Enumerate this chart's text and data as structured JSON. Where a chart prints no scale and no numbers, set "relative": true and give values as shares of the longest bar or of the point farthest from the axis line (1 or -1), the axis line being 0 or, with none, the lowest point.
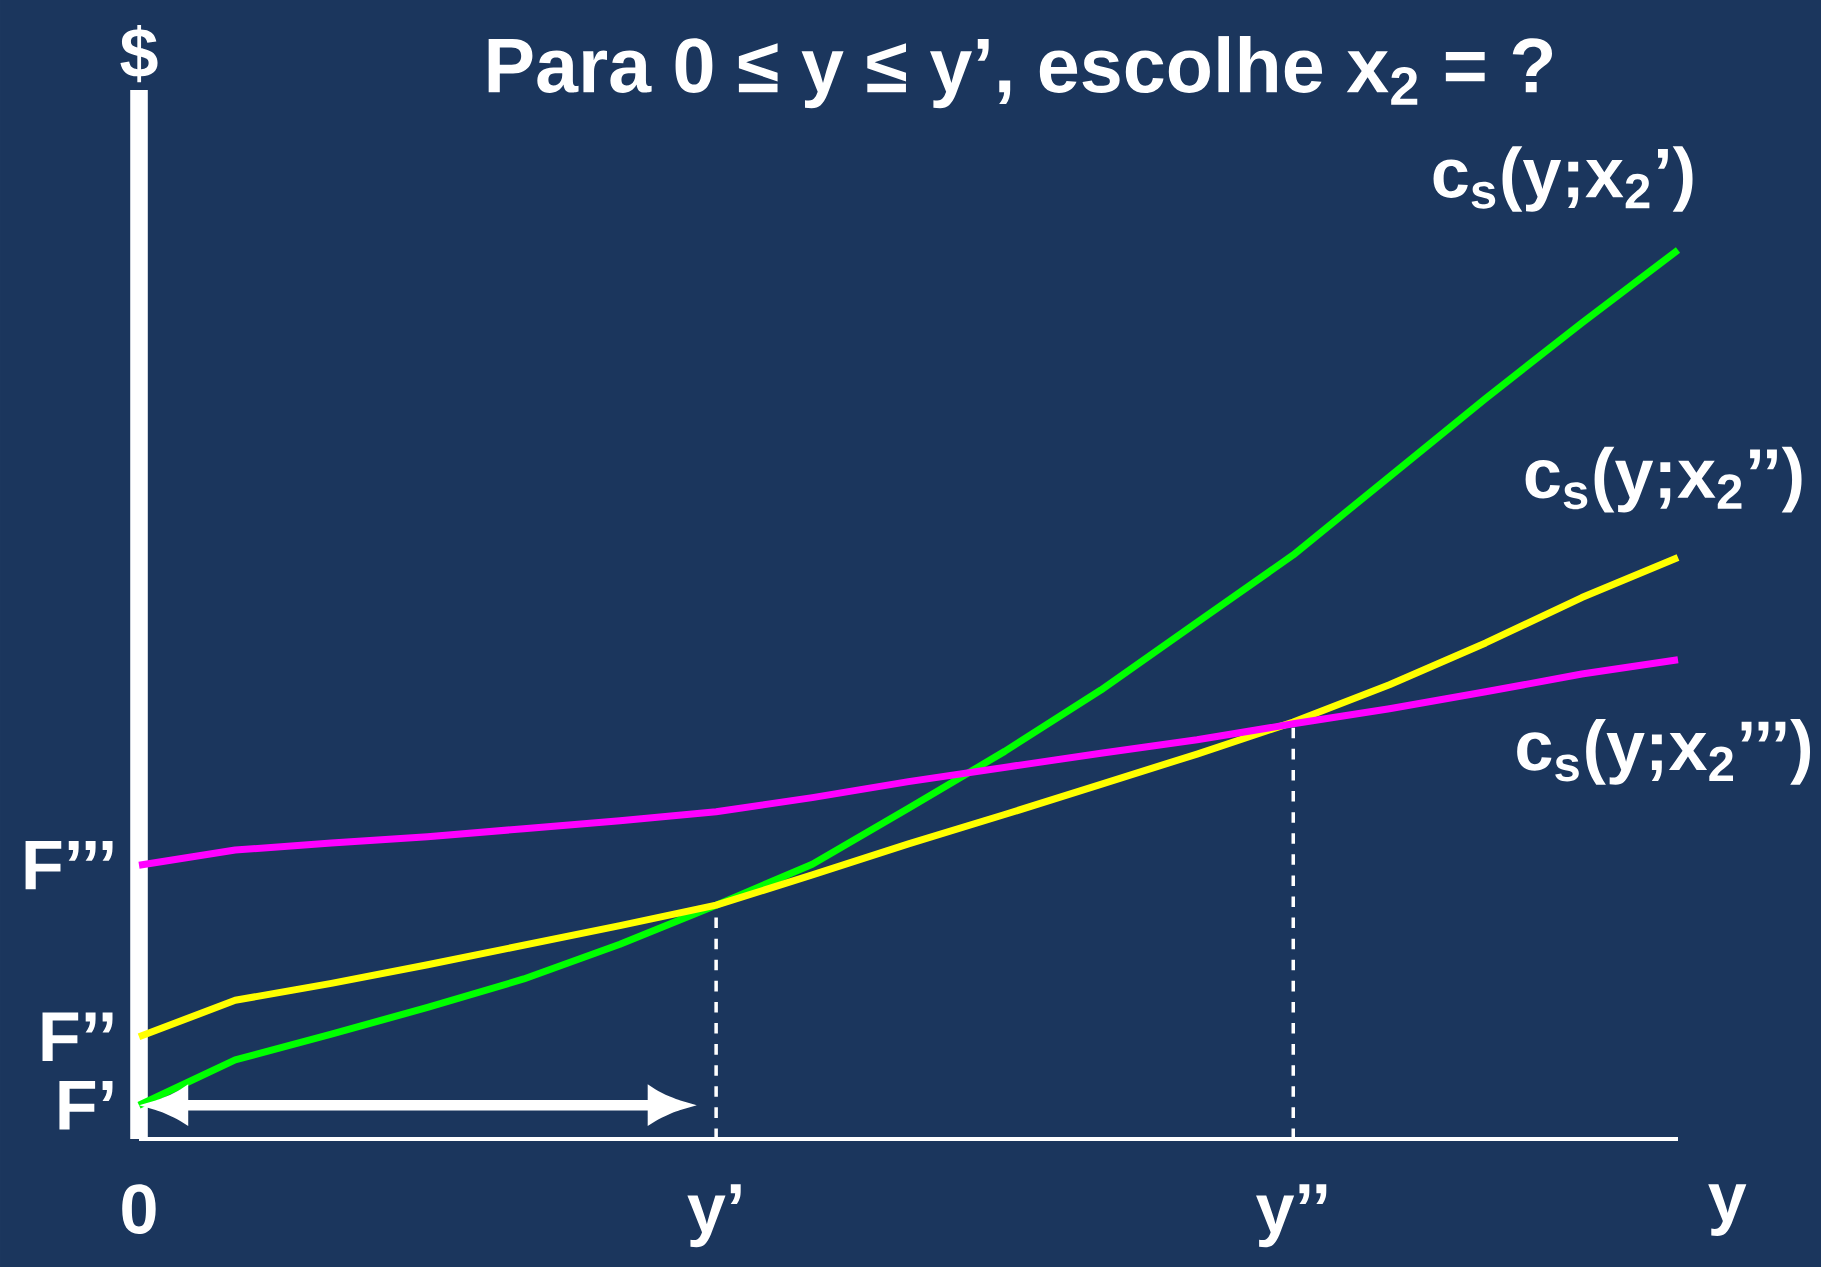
{
  "chart_data": {
    "type": "line",
    "relative": true,
    "title": "Para 0 ≤ y ≤ y’, escolhe x$_{2}$ = ?",
    "xlabel": "y",
    "ylabel": "$",
    "categories": [
      "0",
      null,
      null,
      null,
      null,
      null,
      "y’",
      null,
      null,
      null,
      null,
      null,
      "y’’",
      null,
      null,
      null,
      null
    ],
    "series": [
      {
        "name": "c$_{s}$(y;x$_{2}$’)",
        "color": "#00ff00",
        "values": [
          0.038,
          0.089,
          0.118,
          0.148,
          0.18,
          0.219,
          0.263,
          0.309,
          0.372,
          0.436,
          0.505,
          0.581,
          0.657,
          0.745,
          0.833,
          0.918,
          1
        ]
      },
      {
        "name": "c$_{s}$(y;x$_{2}$’’)",
        "color": "#ffff00",
        "values": [
          0.115,
          0.156,
          0.175,
          0.196,
          0.218,
          0.24,
          0.263,
          0.297,
          0.332,
          0.365,
          0.399,
          0.433,
          0.469,
          0.511,
          0.558,
          0.609,
          0.654
        ]
      },
      {
        "name": "c$_{s}$(y;x$_{2}$’’’)",
        "color": "#ff00ff",
        "values": [
          0.308,
          0.325,
          0.333,
          0.34,
          0.349,
          0.358,
          0.368,
          0.384,
          0.402,
          0.418,
          0.434,
          0.449,
          0.467,
          0.484,
          0.503,
          0.523,
          0.539
        ]
      }
    ],
    "annotations": [
      "F’",
      "F’’",
      "F’’’"
    ],
    "ref_lines": [
      {
        "axis": "x",
        "value": "y’",
        "color": "#ffffff",
        "line_style": "dashed"
      },
      {
        "axis": "x",
        "value": "y’’",
        "color": "#ffffff",
        "line_style": "dashed"
      }
    ],
    "grid": false,
    "legend": false,
    "marker": "none",
    "line_style": "solid"
  }
}
